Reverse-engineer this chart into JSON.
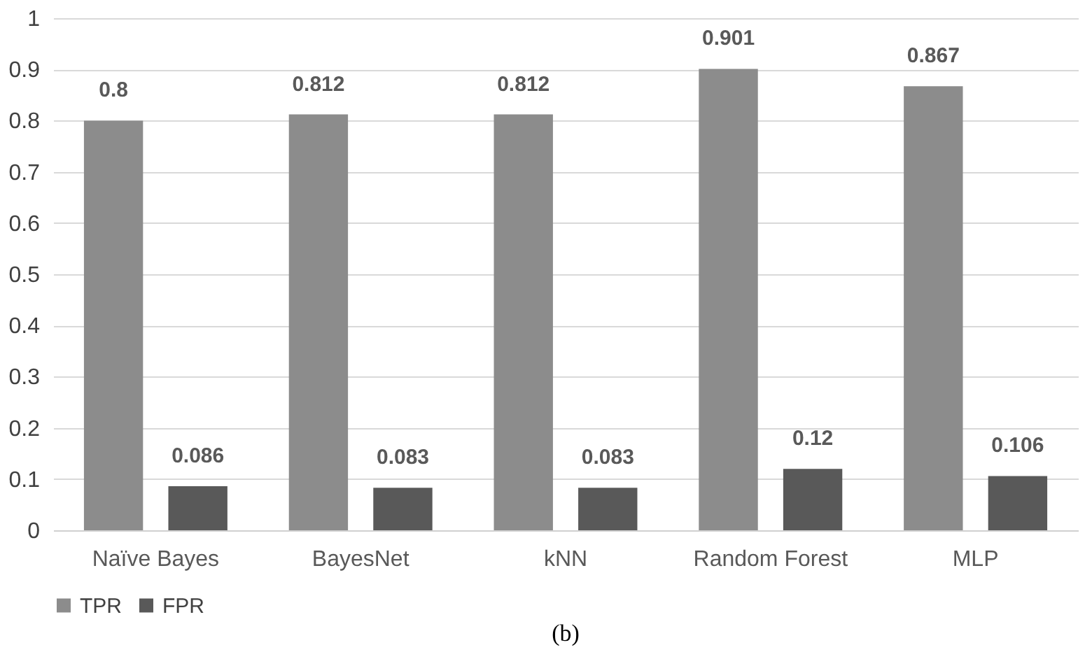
{
  "chart_data": {
    "type": "bar",
    "categories": [
      "Naïve Bayes",
      "BayesNet",
      "kNN",
      "Random Forest",
      "MLP"
    ],
    "series": [
      {
        "name": "TPR",
        "color": "#8c8c8c",
        "values": [
          0.8,
          0.812,
          0.812,
          0.901,
          0.867
        ]
      },
      {
        "name": "FPR",
        "color": "#595959",
        "values": [
          0.086,
          0.083,
          0.083,
          0.12,
          0.106
        ]
      }
    ],
    "ylim": [
      0,
      1
    ],
    "yticks": [
      0,
      0.1,
      0.2,
      0.3,
      0.4,
      0.5,
      0.6,
      0.7,
      0.8,
      0.9,
      1
    ],
    "grid": "y",
    "legend": "bottom",
    "data_labels": true,
    "annotations": [
      "(b)"
    ]
  }
}
